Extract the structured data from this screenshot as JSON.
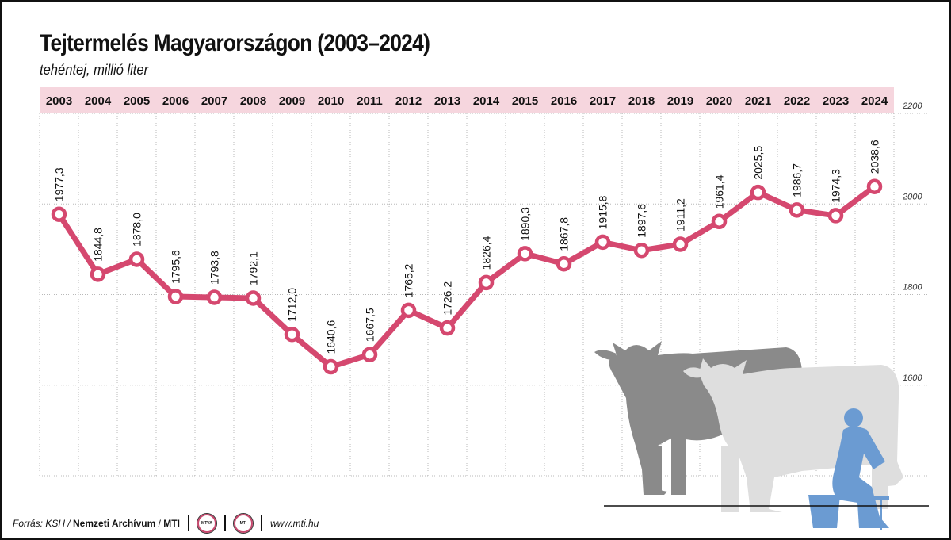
{
  "title": "Tejtermelés Magyarországon (2003–2024)",
  "subtitle": "tehéntej, millió liter",
  "colors": {
    "line": "#d5486f",
    "year_band": "#f6d6de",
    "grid": "#b8b8b8",
    "cow_dark": "#8a8a8a",
    "cow_light": "#dedede",
    "farmer": "#6b9bd2"
  },
  "chart_data": {
    "type": "line",
    "title": "Tejtermelés Magyarországon (2003–2024)",
    "subtitle": "tehéntej, millió liter",
    "xlabel": "",
    "ylabel": "millió liter",
    "categories": [
      "2003",
      "2004",
      "2005",
      "2006",
      "2007",
      "2008",
      "2009",
      "2010",
      "2011",
      "2012",
      "2013",
      "2014",
      "2015",
      "2016",
      "2017",
      "2018",
      "2019",
      "2020",
      "2021",
      "2022",
      "2023",
      "2024"
    ],
    "series": [
      {
        "name": "tehéntej",
        "values": [
          1977.3,
          1844.8,
          1878.0,
          1795.6,
          1793.8,
          1792.1,
          1712.0,
          1640.6,
          1667.5,
          1765.2,
          1726.2,
          1826.4,
          1890.3,
          1867.8,
          1915.8,
          1897.6,
          1911.2,
          1961.4,
          2025.5,
          1986.7,
          1974.3,
          2038.6
        ],
        "labels": [
          "1977,3",
          "1844,8",
          "1878,0",
          "1795,6",
          "1793,8",
          "1792,1",
          "1712,0",
          "1640,6",
          "1667,5",
          "1765,2",
          "1726,2",
          "1826,4",
          "1890,3",
          "1867,8",
          "1915,8",
          "1897,6",
          "1911,2",
          "1961,4",
          "2025,5",
          "1986,7",
          "1974,3",
          "2038,6"
        ]
      }
    ],
    "yticks": [
      1600,
      1800,
      2000,
      2200
    ],
    "ytick_labels": [
      "1600",
      "1800",
      "2000",
      "2200"
    ],
    "ylim": [
      1400,
      2200
    ],
    "grid": true
  },
  "footer": {
    "source_prefix": "Forrás: KSH / ",
    "source_bold": "Nemzeti Archívum",
    "source_sep": " / ",
    "source_mti": "MTI",
    "badge1": "MTVA",
    "badge2": "MTI",
    "url": "www.mti.hu"
  }
}
